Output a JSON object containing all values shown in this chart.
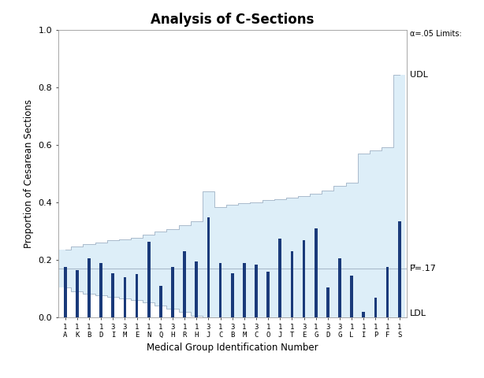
{
  "title": "Analysis of C-Sections",
  "xlabel": "Medical Group Identification Number",
  "ylabel": "Proportion of Cesarean Sections",
  "p_bar": 0.17,
  "alpha_label": "α=.05 Limits:",
  "udl_label": "UDL",
  "ldl_label": "LDL",
  "pbar_label": "P̅=.17",
  "ylim": [
    0,
    1.0
  ],
  "yticks": [
    0.0,
    0.2,
    0.4,
    0.6,
    0.8,
    1.0
  ],
  "groups": [
    {
      "id": "1\nA",
      "prop": 0.175
    },
    {
      "id": "1\nK",
      "prop": 0.165
    },
    {
      "id": "1\nB",
      "prop": 0.205
    },
    {
      "id": "1\nD",
      "prop": 0.19
    },
    {
      "id": "3\nI",
      "prop": 0.155
    },
    {
      "id": "3\nM",
      "prop": 0.14
    },
    {
      "id": "1\nE",
      "prop": 0.15
    },
    {
      "id": "1\nN",
      "prop": 0.265
    },
    {
      "id": "1\nQ",
      "prop": 0.11
    },
    {
      "id": "3\nH",
      "prop": 0.175
    },
    {
      "id": "1\nR",
      "prop": 0.23
    },
    {
      "id": "1\nH",
      "prop": 0.195
    },
    {
      "id": "3\nJ",
      "prop": 0.35
    },
    {
      "id": "1\nC",
      "prop": 0.19
    },
    {
      "id": "3\nB",
      "prop": 0.155
    },
    {
      "id": "1\nM",
      "prop": 0.19
    },
    {
      "id": "3\nC",
      "prop": 0.185
    },
    {
      "id": "1\nO",
      "prop": 0.16
    },
    {
      "id": "1\nJ",
      "prop": 0.275
    },
    {
      "id": "1\nT",
      "prop": 0.23
    },
    {
      "id": "3\nE",
      "prop": 0.27
    },
    {
      "id": "1\nG",
      "prop": 0.31
    },
    {
      "id": "3\nD",
      "prop": 0.105
    },
    {
      "id": "3\nG",
      "prop": 0.205
    },
    {
      "id": "1\nL",
      "prop": 0.145
    },
    {
      "id": "1\nI",
      "prop": 0.02
    },
    {
      "id": "1\nP",
      "prop": 0.07
    },
    {
      "id": "1\nF",
      "prop": 0.175
    },
    {
      "id": "1\nS",
      "prop": 0.335
    }
  ],
  "udl_values": [
    0.235,
    0.248,
    0.256,
    0.262,
    0.268,
    0.273,
    0.278,
    0.288,
    0.298,
    0.308,
    0.32,
    0.335,
    0.44,
    0.385,
    0.392,
    0.397,
    0.402,
    0.408,
    0.413,
    0.418,
    0.423,
    0.432,
    0.442,
    0.458,
    0.468,
    0.572,
    0.582,
    0.592,
    0.845
  ],
  "ldl_values": [
    0.105,
    0.092,
    0.084,
    0.078,
    0.072,
    0.067,
    0.062,
    0.052,
    0.042,
    0.032,
    0.02,
    0.005,
    0.0,
    0.0,
    0.0,
    0.0,
    0.0,
    0.0,
    0.0,
    0.0,
    0.0,
    0.0,
    0.0,
    0.0,
    0.0,
    0.0,
    0.0,
    0.0,
    0.0
  ],
  "bar_color": "#1a3a7a",
  "band_fill_color": "#ddeef8",
  "band_line_color": "#aabbcc",
  "bg_color": "#ffffff",
  "plot_bg_color": "#ffffff"
}
